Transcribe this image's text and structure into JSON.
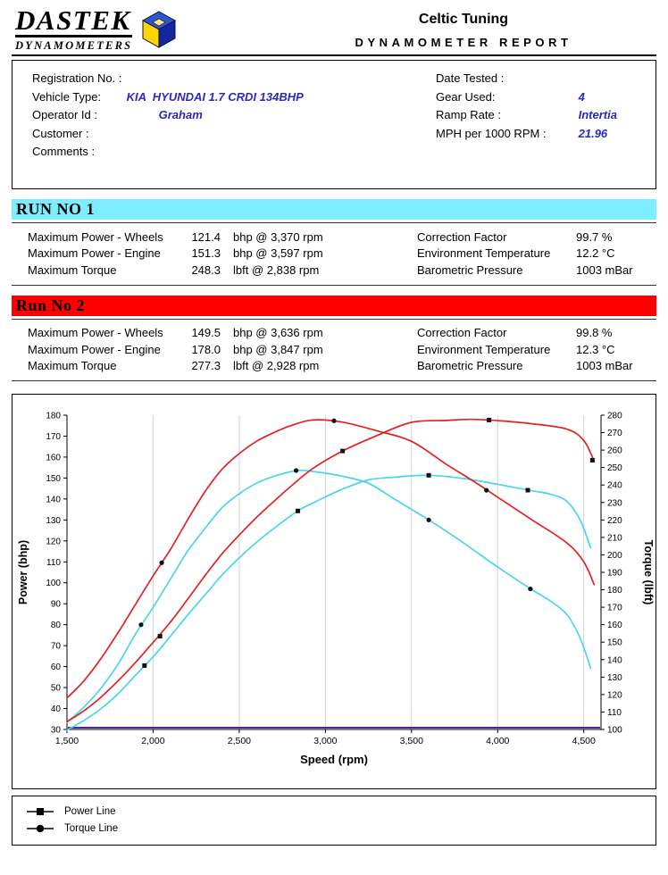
{
  "header": {
    "logo_line1": "DASTEK",
    "logo_line2": "DYNAMOMETERS",
    "title": "Celtic Tuning",
    "subtitle": "DYNAMOMETER REPORT"
  },
  "info": {
    "left": [
      {
        "label": "Registration No. :",
        "value": ""
      },
      {
        "label": "Vehicle Type:",
        "value": "KIA  HYUNDAI 1.7 CRDI 134BHP"
      },
      {
        "label": "Operator Id :",
        "value": "Graham"
      },
      {
        "label": "Customer :",
        "value": ""
      },
      {
        "label": "Comments :",
        "value": ""
      }
    ],
    "right": [
      {
        "label": "Date Tested :",
        "value": ""
      },
      {
        "label": "Gear Used:",
        "value": "4"
      },
      {
        "label": "Ramp Rate :",
        "value": "Intertia"
      },
      {
        "label": "MPH per 1000 RPM :",
        "value": "21.96"
      }
    ]
  },
  "runs": [
    {
      "title": "RUN NO 1",
      "banner_color": "#7deeff",
      "stats": [
        {
          "label": "Maximum Power - Wheels",
          "value": "121.4",
          "unit": "bhp @ 3,370 rpm"
        },
        {
          "label": "Maximum Power - Engine",
          "value": "151.3",
          "unit": "bhp @ 3,597 rpm"
        },
        {
          "label": "Maximum Torque",
          "value": "248.3",
          "unit": "lbft @ 2,838 rpm"
        }
      ],
      "env": [
        {
          "label": "Correction Factor",
          "value": "99.7 %"
        },
        {
          "label": "Environment Temperature",
          "value": "12.2 °C"
        },
        {
          "label": "Barometric Pressure",
          "value": "1003 mBar"
        }
      ]
    },
    {
      "title": "Run No 2",
      "banner_color": "#ff0000",
      "stats": [
        {
          "label": "Maximum Power - Wheels",
          "value": "149.5",
          "unit": "bhp @ 3,636 rpm"
        },
        {
          "label": "Maximum Power - Engine",
          "value": "178.0",
          "unit": "bhp @ 3,847 rpm"
        },
        {
          "label": "Maximum Torque",
          "value": "277.3",
          "unit": "lbft @ 2,928 rpm"
        }
      ],
      "env": [
        {
          "label": "Correction Factor",
          "value": "99.8 %"
        },
        {
          "label": "Environment Temperature",
          "value": "12.3 °C"
        },
        {
          "label": "Barometric Pressure",
          "value": "1003 mBar"
        }
      ]
    }
  ],
  "chart_data": {
    "type": "line",
    "xlabel": "Speed (rpm)",
    "ylabel_left": "Power (bhp)",
    "ylabel_right": "Torque (lbft)",
    "x_range": [
      1500,
      4600
    ],
    "x_ticks": [
      1500,
      2000,
      2500,
      3000,
      3500,
      4000,
      4500
    ],
    "x_tick_labels": [
      "1,500",
      "2,000",
      "2,500",
      "3,000",
      "3,500",
      "4,000",
      "4,500"
    ],
    "power_axis": {
      "min": 30,
      "max": 180,
      "step": 10
    },
    "torque_axis": {
      "min": 100,
      "max": 280,
      "step": 10
    },
    "grid_color": "#d4d4d4",
    "baseline_color": "#4a2a8a",
    "marker_color": "#111111",
    "series": [
      {
        "name": "Run 1 Power",
        "axis": "power",
        "color": "#49d6e8",
        "marker": "square",
        "points": [
          [
            1500,
            29.7
          ],
          [
            1600,
            34.4
          ],
          [
            1700,
            40.1
          ],
          [
            1800,
            47.3
          ],
          [
            1900,
            56.1
          ],
          [
            2000,
            64.7
          ],
          [
            2100,
            74.4
          ],
          [
            2200,
            84.6
          ],
          [
            2300,
            94.1
          ],
          [
            2400,
            103.7
          ],
          [
            2500,
            111.9
          ],
          [
            2600,
            119.3
          ],
          [
            2700,
            125.9
          ],
          [
            2840,
            134.3
          ],
          [
            2950,
            139
          ],
          [
            3100,
            144.7
          ],
          [
            3250,
            149.1
          ],
          [
            3400,
            150.4
          ],
          [
            3600,
            151.3
          ],
          [
            3800,
            149.8
          ],
          [
            4000,
            147
          ],
          [
            4200,
            143.9
          ],
          [
            4300,
            142.4
          ],
          [
            4400,
            139
          ],
          [
            4480,
            129.7
          ],
          [
            4540,
            116.7
          ]
        ],
        "markers": [
          [
            1950,
            60.5
          ],
          [
            2840,
            134.3
          ],
          [
            3600,
            151.3
          ],
          [
            4175,
            144.2
          ]
        ]
      },
      {
        "name": "Run 1 Torque",
        "axis": "torque",
        "color": "#49d6e8",
        "marker": "circle",
        "points": [
          [
            1500,
            104
          ],
          [
            1600,
            113
          ],
          [
            1700,
            124
          ],
          [
            1800,
            138
          ],
          [
            1900,
            155
          ],
          [
            2000,
            170
          ],
          [
            2100,
            186
          ],
          [
            2200,
            202
          ],
          [
            2300,
            215
          ],
          [
            2400,
            227
          ],
          [
            2500,
            235
          ],
          [
            2600,
            241
          ],
          [
            2700,
            245
          ],
          [
            2838,
            248.3
          ],
          [
            2950,
            247.5
          ],
          [
            3100,
            245
          ],
          [
            3250,
            241
          ],
          [
            3400,
            232
          ],
          [
            3600,
            220
          ],
          [
            3800,
            207
          ],
          [
            4000,
            193
          ],
          [
            4200,
            180
          ],
          [
            4300,
            174
          ],
          [
            4400,
            166
          ],
          [
            4480,
            152
          ],
          [
            4540,
            135
          ]
        ],
        "markers": [
          [
            1930,
            160
          ],
          [
            2830,
            248.3
          ],
          [
            3600,
            220
          ],
          [
            4190,
            180.5
          ]
        ]
      },
      {
        "name": "Run 2 Power",
        "axis": "power",
        "color": "#e02222",
        "marker": "square",
        "points": [
          [
            1500,
            33.7
          ],
          [
            1600,
            39
          ],
          [
            1700,
            45.6
          ],
          [
            1800,
            53.5
          ],
          [
            1900,
            62.2
          ],
          [
            2000,
            71.6
          ],
          [
            2100,
            81.2
          ],
          [
            2200,
            92.1
          ],
          [
            2300,
            103.3
          ],
          [
            2400,
            113.8
          ],
          [
            2500,
            122.8
          ],
          [
            2600,
            131.2
          ],
          [
            2700,
            138.8
          ],
          [
            2800,
            146.1
          ],
          [
            2928,
            154.6
          ],
          [
            3100,
            162.9
          ],
          [
            3300,
            170.3
          ],
          [
            3500,
            176.6
          ],
          [
            3700,
            177.5
          ],
          [
            3847,
            178
          ],
          [
            4000,
            177.4
          ],
          [
            4200,
            175.9
          ],
          [
            4400,
            173.4
          ],
          [
            4500,
            167.9
          ],
          [
            4560,
            158
          ]
        ],
        "markers": [
          [
            2040,
            74.5
          ],
          [
            3100,
            162.9
          ],
          [
            3950,
            177.7
          ],
          [
            4550,
            158.5
          ]
        ]
      },
      {
        "name": "Run 2 Torque",
        "axis": "torque",
        "color": "#e02222",
        "marker": "circle",
        "points": [
          [
            1500,
            118
          ],
          [
            1600,
            128
          ],
          [
            1700,
            141
          ],
          [
            1800,
            156
          ],
          [
            1900,
            172
          ],
          [
            2000,
            188
          ],
          [
            2100,
            203
          ],
          [
            2200,
            220
          ],
          [
            2300,
            236
          ],
          [
            2400,
            249
          ],
          [
            2500,
            258
          ],
          [
            2600,
            265
          ],
          [
            2700,
            270
          ],
          [
            2800,
            274
          ],
          [
            2928,
            277.3
          ],
          [
            3100,
            276
          ],
          [
            3300,
            271
          ],
          [
            3500,
            265
          ],
          [
            3700,
            252
          ],
          [
            3847,
            243
          ],
          [
            4000,
            233
          ],
          [
            4200,
            220
          ],
          [
            4400,
            207
          ],
          [
            4500,
            196
          ],
          [
            4560,
            183
          ]
        ],
        "markers": [
          [
            2050,
            195.5
          ],
          [
            3050,
            276.8
          ],
          [
            3935,
            237
          ]
        ]
      }
    ]
  },
  "legend": {
    "items": [
      {
        "marker": "square",
        "label": "Power Line"
      },
      {
        "marker": "circle",
        "label": "Torque Line"
      }
    ]
  }
}
